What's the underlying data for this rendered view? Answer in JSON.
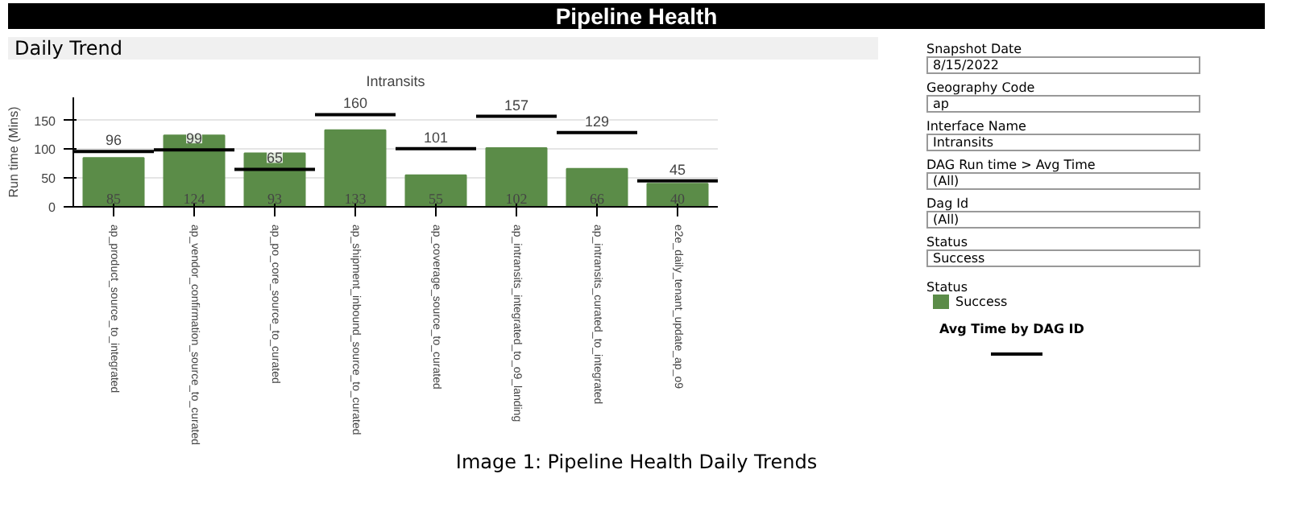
{
  "chart_data": [
    {
      "type": "bar",
      "title": "Pipeline Health",
      "subtitle": "Daily Trend",
      "ylabel": "Run time (Mins)",
      "annotations": [
        "Intransits",
        "Image 1: Pipeline Health Daily Trends",
        "Avg Time by DAG ID"
      ],
      "categories": [
        "ap_product_source_to_integrated",
        "ap_vendor_confirmation_source_to_curated",
        "ap_po_core_source_to_curated",
        "ap_shipment_inbound_source_to_curated",
        "ap_coverage_source_to_curated",
        "ap_intransits_integrated_to_o9_landing",
        "ap_intransits_curated_to_integrated",
        "e2e_daily_tenant_update_ap_o9"
      ],
      "series": [
        {
          "name": "Success",
          "type": "bar",
          "color": "#5b8c48",
          "values": [
            85,
            124,
            93,
            133,
            55,
            102,
            66,
            40
          ]
        }
      ],
      "ref_lines": [
        {
          "axis": "y",
          "value": 96,
          "label": "96",
          "color": "#000000"
        },
        {
          "axis": "y",
          "value": 99,
          "label": "99",
          "color": "#000000"
        },
        {
          "axis": "y",
          "value": 65,
          "label": "65",
          "color": "#000000"
        },
        {
          "axis": "y",
          "value": 160,
          "label": "160",
          "color": "#000000"
        },
        {
          "axis": "y",
          "value": 101,
          "label": "101",
          "color": "#000000"
        },
        {
          "axis": "y",
          "value": 157,
          "label": "157",
          "color": "#000000"
        },
        {
          "axis": "y",
          "value": 129,
          "label": "129",
          "color": "#000000"
        },
        {
          "axis": "y",
          "value": 45,
          "label": "45",
          "color": "#000000"
        }
      ],
      "ylim": [
        0,
        190
      ],
      "yticks": [
        0,
        50,
        100,
        150
      ],
      "grid": "y",
      "data_labels": true,
      "legend": "right",
      "legend_title": "Status"
    },
    {
      "type": "other",
      "annotations": [
        "Snapshot Date",
        "8/15/2022",
        "Geography Code",
        "ap",
        "Interface Name",
        "Intransits",
        "DAG Run time > Avg Time",
        "(All)",
        "Dag Id",
        "(All)",
        "Status",
        "Success"
      ]
    }
  ]
}
